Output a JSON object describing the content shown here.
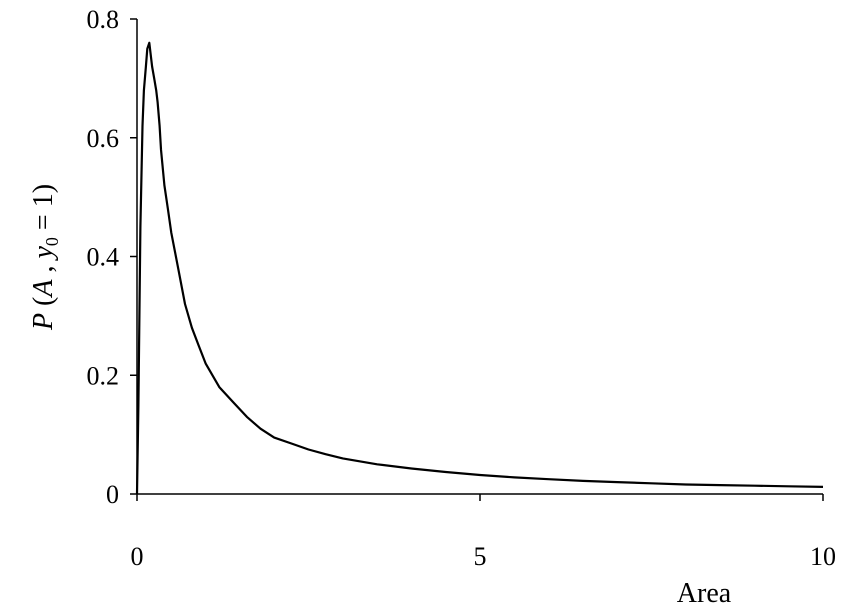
{
  "chart_data": {
    "type": "line",
    "title": "",
    "xlabel": "Area",
    "ylabel_parts": {
      "p": "P",
      "a": "A",
      "y": "y",
      "sub": "0",
      "rest": " = 1)"
    },
    "xlim": [
      0,
      10
    ],
    "ylim": [
      0,
      0.8
    ],
    "xticks": [
      0,
      5,
      10
    ],
    "yticks": [
      0,
      0.2,
      0.4,
      0.6,
      0.8
    ],
    "xtick_labels": [
      "0",
      "5",
      "10"
    ],
    "ytick_labels": [
      "0",
      "0.2",
      "0.4",
      "0.6",
      "0.8"
    ],
    "grid": false,
    "legend": "none",
    "line_color": "#000000",
    "series": [
      {
        "x": [
          0,
          0.02,
          0.05,
          0.08,
          0.1,
          0.13,
          0.15,
          0.18,
          0.2,
          0.22,
          0.25,
          0.28,
          0.3,
          0.33,
          0.35,
          0.4,
          0.45,
          0.5,
          0.6,
          0.7,
          0.8,
          0.9,
          1.0,
          1.2,
          1.4,
          1.6,
          1.8,
          2.0,
          2.25,
          2.5,
          2.75,
          3.0,
          3.5,
          4.0,
          4.5,
          5.0,
          5.5,
          6.0,
          6.5,
          7.0,
          7.5,
          8.0,
          8.5,
          9.0,
          9.5,
          10.0
        ],
        "y": [
          0,
          0.15,
          0.45,
          0.62,
          0.68,
          0.72,
          0.75,
          0.76,
          0.74,
          0.72,
          0.7,
          0.68,
          0.66,
          0.62,
          0.58,
          0.52,
          0.48,
          0.44,
          0.38,
          0.32,
          0.28,
          0.25,
          0.22,
          0.18,
          0.155,
          0.13,
          0.11,
          0.095,
          0.085,
          0.075,
          0.067,
          0.06,
          0.05,
          0.043,
          0.037,
          0.032,
          0.028,
          0.025,
          0.022,
          0.02,
          0.018,
          0.016,
          0.015,
          0.014,
          0.013,
          0.012
        ]
      }
    ]
  }
}
